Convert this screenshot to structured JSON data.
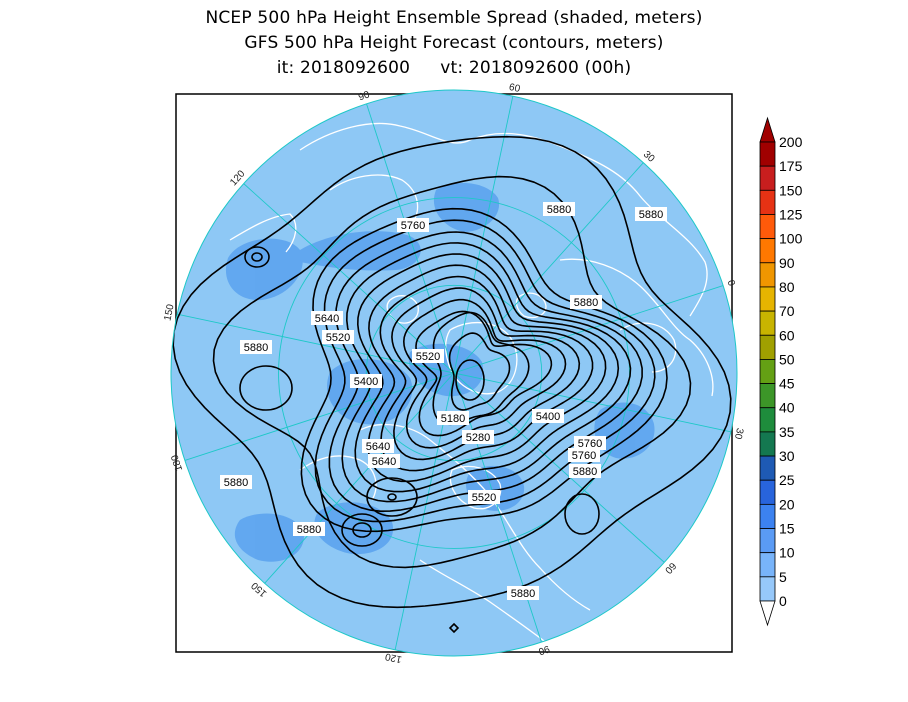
{
  "title": {
    "line1": "NCEP 500 hPa Height Ensemble Spread (shaded, meters)",
    "line2": "GFS 500 hPa Height Forecast (contours, meters)",
    "init_label": "it: 2018092600",
    "valid_label": "vt: 2018092600 (00h)"
  },
  "colors": {
    "ocean": "#8ec8f5",
    "spread_low": "#5aa2ee",
    "grid": "#1ec8c8",
    "coast": "#ffffff",
    "contour": "#000000"
  },
  "colorbar": {
    "levels": [
      "200",
      "175",
      "150",
      "125",
      "100",
      "90",
      "80",
      "70",
      "60",
      "50",
      "45",
      "40",
      "35",
      "30",
      "25",
      "20",
      "15",
      "10",
      "5",
      "0"
    ],
    "colors": [
      "#a00000",
      "#c81e1e",
      "#e63214",
      "#ff5a0a",
      "#ff7800",
      "#f09600",
      "#e6b400",
      "#c8b400",
      "#a0a000",
      "#64a014",
      "#3c9628",
      "#1e8c3c",
      "#147850",
      "#1e5ab4",
      "#2864dc",
      "#3c82f0",
      "#5a9bf5",
      "#78b4fa",
      "#96c8fa"
    ],
    "top_arrow_color": "#a00000",
    "bottom_arrow_color": "#ffffff"
  },
  "longitude_labels": [
    "60",
    "30",
    "0",
    "30",
    "60",
    "90",
    "120",
    "150",
    "180",
    "150",
    "120",
    "90"
  ],
  "contour_labels": [
    {
      "text": "5760"
    },
    {
      "text": "5880"
    },
    {
      "text": "5880"
    },
    {
      "text": "5880"
    },
    {
      "text": "5640"
    },
    {
      "text": "5520"
    },
    {
      "text": "5880"
    },
    {
      "text": "5400"
    },
    {
      "text": "5520"
    },
    {
      "text": "5180"
    },
    {
      "text": "5400"
    },
    {
      "text": "5280"
    },
    {
      "text": "5640"
    },
    {
      "text": "5760"
    },
    {
      "text": "5640"
    },
    {
      "text": "5760"
    },
    {
      "text": "5880"
    },
    {
      "text": "5880"
    },
    {
      "text": "5520"
    },
    {
      "text": "5880"
    },
    {
      "text": "5880"
    }
  ]
}
